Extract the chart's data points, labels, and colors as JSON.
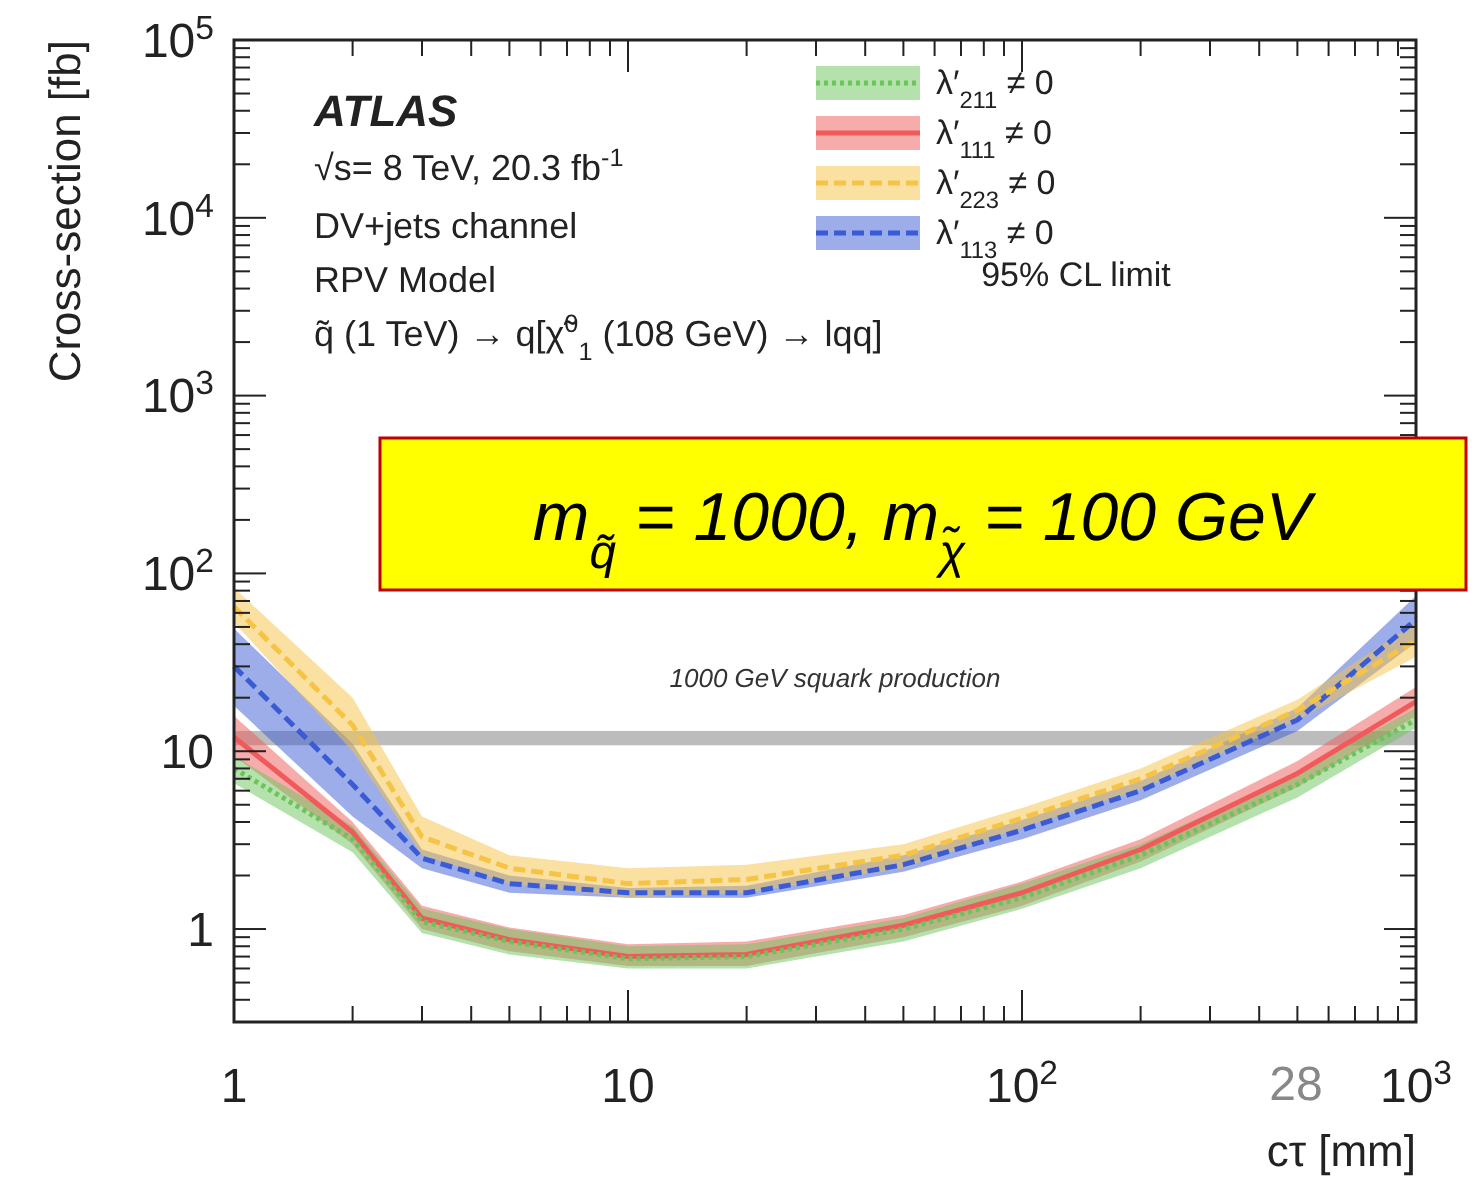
{
  "chart_data": {
    "type": "line",
    "xlabel": "cτ [mm]",
    "ylabel": "Cross-section [fb]",
    "log": "xy",
    "xlim": [
      1,
      1000
    ],
    "ylim": [
      0.3,
      100000
    ],
    "xticks": [
      1,
      {
        "value": 2,
        "label": null
      },
      {
        "value": 3,
        "label": null
      },
      {
        "value": 4,
        "label": null
      },
      {
        "value": 5,
        "label": null
      },
      {
        "value": 6,
        "label": null
      },
      {
        "value": 7,
        "label": null
      },
      {
        "value": 8,
        "label": null
      },
      {
        "value": 9,
        "label": null
      },
      10,
      {
        "value": 20,
        "label": null
      },
      {
        "value": 30,
        "label": null
      },
      {
        "value": 40,
        "label": null
      },
      {
        "value": 50,
        "label": null
      },
      {
        "value": 60,
        "label": null
      },
      {
        "value": 70,
        "label": null
      },
      {
        "value": 80,
        "label": null
      },
      {
        "value": 90,
        "label": null
      },
      {
        "value": 100,
        "label": "10$^{2}$"
      },
      {
        "value": 200,
        "label": null
      },
      {
        "value": 300,
        "label": null
      },
      {
        "value": 400,
        "label": null
      },
      {
        "value": 500,
        "label": null
      },
      {
        "value": 600,
        "label": null
      },
      {
        "value": 700,
        "label": null
      },
      {
        "value": 800,
        "label": null
      },
      {
        "value": 900,
        "label": null
      },
      {
        "value": 1000,
        "label": "10$^{3}$"
      }
    ],
    "yticks": [
      {
        "value": 0.3,
        "label": null
      },
      {
        "value": 0.4,
        "label": null
      },
      {
        "value": 0.5,
        "label": null
      },
      {
        "value": 0.6,
        "label": null
      },
      {
        "value": 0.7,
        "label": null
      },
      {
        "value": 0.8,
        "label": null
      },
      {
        "value": 0.9,
        "label": null
      },
      1,
      {
        "value": 2,
        "label": null
      },
      {
        "value": 3,
        "label": null
      },
      {
        "value": 4,
        "label": null
      },
      {
        "value": 5,
        "label": null
      },
      {
        "value": 6,
        "label": null
      },
      {
        "value": 7,
        "label": null
      },
      {
        "value": 8,
        "label": null
      },
      {
        "value": 9,
        "label": null
      },
      10,
      {
        "value": 20,
        "label": null
      },
      {
        "value": 30,
        "label": null
      },
      {
        "value": 40,
        "label": null
      },
      {
        "value": 50,
        "label": null
      },
      {
        "value": 60,
        "label": null
      },
      {
        "value": 70,
        "label": null
      },
      {
        "value": 80,
        "label": null
      },
      {
        "value": 90,
        "label": null
      },
      {
        "value": 100,
        "label": "10$^{2}$"
      },
      {
        "value": 200,
        "label": null
      },
      {
        "value": 300,
        "label": null
      },
      {
        "value": 400,
        "label": null
      },
      {
        "value": 500,
        "label": null
      },
      {
        "value": 600,
        "label": null
      },
      {
        "value": 700,
        "label": null
      },
      {
        "value": 800,
        "label": null
      },
      {
        "value": 900,
        "label": null
      },
      {
        "value": 1000,
        "label": "10$^{3}$"
      },
      {
        "value": 2000,
        "label": null
      },
      {
        "value": 3000,
        "label": null
      },
      {
        "value": 4000,
        "label": null
      },
      {
        "value": 5000,
        "label": null
      },
      {
        "value": 6000,
        "label": null
      },
      {
        "value": 7000,
        "label": null
      },
      {
        "value": 8000,
        "label": null
      },
      {
        "value": 9000,
        "label": null
      },
      {
        "value": 10000,
        "label": "10$^{4}$"
      },
      {
        "value": 20000,
        "label": null
      },
      {
        "value": 30000,
        "label": null
      },
      {
        "value": 40000,
        "label": null
      },
      {
        "value": 50000,
        "label": null
      },
      {
        "value": 60000,
        "label": null
      },
      {
        "value": 70000,
        "label": null
      },
      {
        "value": 80000,
        "label": null
      },
      {
        "value": 90000,
        "label": null
      },
      {
        "value": 100000,
        "label": "10$^{5}$"
      }
    ],
    "x": [
      1,
      2,
      3,
      5,
      10,
      20,
      50,
      100,
      200,
      500,
      1000
    ],
    "legend": "top right",
    "legend_title": "95% CL limit",
    "grid": false,
    "marker": "none",
    "series": [
      {
        "name": "λ′$_{211}$ ≠ 0",
        "color": "#6cc35a",
        "line_style": "dotted",
        "values": [
          8,
          3.2,
          1.1,
          0.85,
          0.68,
          0.7,
          1.0,
          1.5,
          2.6,
          6.5,
          15
        ],
        "lower": [
          6.6,
          2.7,
          0.95,
          0.72,
          0.6,
          0.6,
          0.85,
          1.3,
          2.2,
          5.5,
          13.5
        ],
        "upper": [
          9.4,
          3.8,
          1.3,
          1.0,
          0.8,
          0.82,
          1.15,
          1.8,
          3.0,
          7.5,
          17.5
        ]
      },
      {
        "name": "λ′$_{111}$ ≠ 0",
        "color": "#f05a5a",
        "line_style": "solid",
        "values": [
          12,
          3.5,
          1.15,
          0.87,
          0.7,
          0.72,
          1.05,
          1.6,
          2.8,
          7.5,
          19
        ],
        "lower": [
          9.4,
          3,
          1,
          0.75,
          0.62,
          0.62,
          0.9,
          1.35,
          2.4,
          6.3,
          15.8
        ],
        "upper": [
          15.8,
          4,
          1.35,
          1.02,
          0.82,
          0.85,
          1.2,
          1.85,
          3.2,
          8.8,
          23
        ]
      },
      {
        "name": "λ′$_{223}$ ≠ 0",
        "color": "#f5c346",
        "line_style": "dashed",
        "values": [
          65,
          14,
          3.3,
          2.2,
          1.8,
          1.9,
          2.6,
          4.2,
          7,
          17,
          42
        ],
        "lower": [
          53,
          10,
          2.6,
          1.8,
          1.5,
          1.6,
          2.2,
          3.7,
          6.1,
          15,
          34
        ],
        "upper": [
          83,
          20,
          4.3,
          2.6,
          2.2,
          2.3,
          3,
          4.8,
          8,
          19.5,
          53
        ]
      },
      {
        "name": "λ′$_{113}$ ≠ 0",
        "color": "#3a5bd6",
        "line_style": "dashed",
        "values": [
          30,
          6.5,
          2.5,
          1.8,
          1.6,
          1.6,
          2.3,
          3.6,
          6,
          15,
          55
        ],
        "lower": [
          18,
          4.3,
          2.2,
          1.6,
          1.5,
          1.5,
          2.1,
          3.2,
          5.3,
          13,
          41
        ],
        "upper": [
          49,
          11,
          2.8,
          2,
          1.7,
          1.75,
          2.6,
          4.1,
          6.8,
          17.5,
          75
        ]
      }
    ],
    "bands": [
      {
        "axis": "y",
        "from": 10.8,
        "to": 13,
        "label": "1000 GeV squark production",
        "color": "#b0b0b0"
      }
    ],
    "annotations": [
      "ATLAS",
      "√s= 8 TeV, 20.3 fb$^{-1}$",
      "DV+jets channel",
      "RPV Model",
      "q̃ (1 TeV) → q[χ̃$^{0}$$_{1}$ (108 GeV) → lqq]",
      "m$_{q̃}$ = 1000, m$_{χ̃}$ = 100 GeV",
      "28"
    ]
  }
}
